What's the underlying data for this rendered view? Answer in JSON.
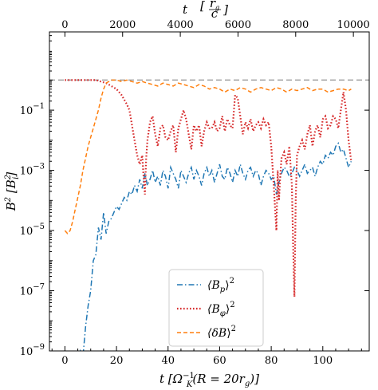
{
  "chart_data": {
    "type": "line",
    "xlabel_main": "t [Ω",
    "xlabel_main_sub": "K",
    "xlabel_main_sup": "−1",
    "xlabel_main_rest": "(R = 20r",
    "xlabel_main_rest_sub": "g",
    "xlabel_main_end": ")]",
    "xlabel_top": "t",
    "xlabel_top_frac_num": "r",
    "xlabel_top_frac_num_sub": "g",
    "xlabel_top_frac_den": "c",
    "ylabel": "B",
    "ylabel_sup": "2",
    "ylabel_unit": "[B",
    "ylabel_unit_sub": "i",
    "ylabel_unit_sup": "2",
    "ylabel_unit_end": "]",
    "xlim": [
      -6,
      118
    ],
    "ylim_log10": [
      -9,
      1.6
    ],
    "yscale": "log",
    "x_ticks": [
      0,
      20,
      40,
      60,
      80,
      100
    ],
    "x_tick_labels": [
      "0",
      "20",
      "40",
      "60",
      "80",
      "100"
    ],
    "y_ticks_log10": [
      -9,
      -7,
      -5,
      -3,
      -1
    ],
    "y_tick_base": "10",
    "y_tick_exponents": [
      "−9",
      "−7",
      "−5",
      "−3",
      "−1"
    ],
    "top_ticks": [
      0,
      2000,
      4000,
      6000,
      8000,
      10000
    ],
    "top_tick_labels": [
      "0",
      "2000",
      "4000",
      "6000",
      "8000",
      "10000"
    ],
    "top_axis_scale": 89.4,
    "reference_line_log10": 0,
    "legend_position": "bottom-center",
    "series": [
      {
        "name_base": "⟨B",
        "name_sub": "p",
        "name_end": "⟩",
        "name_sup": "2",
        "color": "#1f77b4",
        "dash": "dashdot",
        "x": [
          0,
          2,
          4,
          6,
          7,
          8,
          9,
          10,
          11,
          12,
          13,
          14,
          15,
          16,
          17,
          18,
          19,
          20,
          21,
          22,
          23,
          24,
          25,
          26,
          27,
          28,
          29,
          30,
          31,
          32,
          33,
          34,
          35,
          36,
          37,
          38,
          39,
          40,
          41,
          42,
          43,
          44,
          45,
          46,
          47,
          48,
          49,
          50,
          51,
          52,
          53,
          54,
          55,
          56,
          57,
          58,
          59,
          60,
          61,
          62,
          63,
          64,
          65,
          66,
          67,
          68,
          69,
          70,
          71,
          72,
          73,
          74,
          75,
          76,
          77,
          78,
          79,
          80,
          81,
          82,
          83,
          84,
          85,
          86,
          87,
          88,
          89,
          90,
          91,
          92,
          93,
          94,
          95,
          96,
          97,
          98,
          99,
          100,
          101,
          102,
          103,
          104,
          105,
          106,
          107,
          108,
          109,
          110,
          111
        ],
        "log10_y": [
          -10,
          -10,
          -9.8,
          -9.0,
          -9.2,
          -8.2,
          -7.5,
          -7.0,
          -6.0,
          -5.8,
          -4.9,
          -5.3,
          -4.4,
          -5.1,
          -4.7,
          -4.6,
          -4.4,
          -4.2,
          -4.3,
          -4.1,
          -3.9,
          -4.0,
          -3.7,
          -3.8,
          -3.5,
          -3.7,
          -3.3,
          -3.6,
          -3.1,
          -3.5,
          -3.3,
          -3.0,
          -3.4,
          -3.2,
          -3.5,
          -3.0,
          -3.2,
          -3.6,
          -2.9,
          -3.1,
          -3.3,
          -3.6,
          -3.0,
          -3.2,
          -3.4,
          -3.1,
          -2.9,
          -3.3,
          -3.0,
          -3.2,
          -3.5,
          -3.1,
          -2.9,
          -3.2,
          -3.0,
          -3.4,
          -3.1,
          -2.8,
          -3.2,
          -3.3,
          -2.9,
          -3.1,
          -3.4,
          -3.0,
          -3.2,
          -2.8,
          -3.1,
          -3.3,
          -3.0,
          -2.9,
          -3.2,
          -3.0,
          -3.1,
          -3.5,
          -3.2,
          -3.0,
          -3.1,
          -3.3,
          -3.2,
          -3.8,
          -3.4,
          -3.1,
          -2.9,
          -3.0,
          -3.2,
          -3.1,
          -2.9,
          -3.0,
          -3.2,
          -3.0,
          -2.8,
          -3.1,
          -3.0,
          -2.9,
          -3.2,
          -2.9,
          -2.7,
          -2.8,
          -2.5,
          -2.6,
          -2.4,
          -2.5,
          -2.2,
          -2.1,
          -2.4,
          -2.3,
          -2.6,
          -2.9,
          -2.7
        ]
      },
      {
        "name_base": "⟨B",
        "name_sub": "φ",
        "name_end": "⟩",
        "name_sup": "2",
        "color": "#d62728",
        "dash": "dotted",
        "x": [
          0,
          4,
          8,
          12,
          16,
          18,
          20,
          22,
          24,
          25,
          26,
          27,
          28,
          29,
          30,
          30.5,
          31,
          31.5,
          32,
          33,
          34,
          35,
          36,
          37,
          38,
          39,
          40,
          41,
          42,
          43,
          44,
          45,
          46,
          47,
          48,
          49,
          50,
          51,
          52,
          53,
          54,
          55,
          56,
          57,
          58,
          59,
          60,
          61,
          62,
          63,
          64,
          65,
          66,
          67,
          68,
          69,
          70,
          71,
          72,
          73,
          74,
          75,
          76,
          77,
          78,
          79,
          80,
          81,
          82,
          82.5,
          83,
          83.5,
          84,
          85,
          86,
          87,
          88,
          88.5,
          89,
          89.5,
          90,
          91,
          92,
          93,
          94,
          95,
          96,
          97,
          98,
          99,
          100,
          101,
          102,
          103,
          104,
          105,
          106,
          107,
          108,
          109,
          110,
          111
        ],
        "log10_y": [
          0,
          0,
          0,
          0,
          -0.1,
          -0.2,
          -0.3,
          -0.5,
          -0.8,
          -1.0,
          -1.5,
          -2.0,
          -2.5,
          -2.8,
          -2.5,
          -3.2,
          -3.8,
          -2.6,
          -2.0,
          -1.4,
          -1.2,
          -1.8,
          -2.2,
          -1.6,
          -1.5,
          -1.9,
          -2.0,
          -1.7,
          -1.5,
          -2.4,
          -1.6,
          -1.3,
          -1.0,
          -1.3,
          -1.8,
          -2.3,
          -1.5,
          -1.7,
          -1.5,
          -2.2,
          -1.7,
          -1.4,
          -1.6,
          -1.6,
          -1.4,
          -1.7,
          -1.6,
          -1.2,
          -1.7,
          -1.3,
          -1.5,
          -1.6,
          -0.5,
          -0.6,
          -1.2,
          -1.8,
          -1.4,
          -1.6,
          -1.3,
          -1.7,
          -1.5,
          -1.4,
          -1.6,
          -1.3,
          -1.5,
          -1.4,
          -2.2,
          -3.5,
          -5.0,
          -3.0,
          -4.0,
          -3.2,
          -2.6,
          -2.4,
          -2.8,
          -2.2,
          -3.5,
          -5.5,
          -7.2,
          -4.0,
          -2.5,
          -2.2,
          -2.0,
          -2.3,
          -1.8,
          -1.5,
          -2.2,
          -1.7,
          -1.5,
          -1.9,
          -1.3,
          -1.2,
          -1.6,
          -1.5,
          -1.2,
          -1.3,
          -1.6,
          -1.0,
          -0.4,
          -1.0,
          -2.0,
          -2.7
        ]
      },
      {
        "name_base": "⟨δB",
        "name_sub": "",
        "name_end": "⟩",
        "name_sup": "2",
        "color": "#ff7f0e",
        "dash": "dashed",
        "x": [
          0,
          1,
          2,
          3,
          4,
          5,
          6,
          7,
          8,
          9,
          10,
          11,
          12,
          13,
          14,
          15,
          16,
          18,
          20,
          22,
          24,
          26,
          28,
          30,
          32,
          34,
          36,
          38,
          40,
          42,
          44,
          46,
          48,
          50,
          52,
          54,
          56,
          58,
          60,
          62,
          64,
          66,
          68,
          70,
          72,
          74,
          76,
          78,
          80,
          82,
          84,
          86,
          88,
          90,
          92,
          94,
          96,
          98,
          100,
          102,
          104,
          106,
          108,
          110,
          111
        ],
        "log10_y": [
          -5.0,
          -5.1,
          -5.0,
          -4.7,
          -4.3,
          -3.9,
          -3.5,
          -3.0,
          -2.6,
          -2.2,
          -1.9,
          -1.6,
          -1.3,
          -1.0,
          -0.6,
          -0.3,
          -0.1,
          0.0,
          0.0,
          -0.05,
          0.0,
          -0.05,
          -0.1,
          -0.05,
          -0.1,
          -0.15,
          -0.2,
          -0.1,
          -0.15,
          -0.2,
          -0.1,
          -0.15,
          -0.2,
          -0.25,
          -0.15,
          -0.2,
          -0.3,
          -0.25,
          -0.3,
          -0.4,
          -0.3,
          -0.35,
          -0.25,
          -0.3,
          -0.4,
          -0.3,
          -0.25,
          -0.3,
          -0.35,
          -0.25,
          -0.3,
          -0.4,
          -0.3,
          -0.35,
          -0.3,
          -0.25,
          -0.35,
          -0.3,
          -0.3,
          -0.4,
          -0.35,
          -0.3,
          -0.3,
          -0.35,
          -0.3
        ]
      }
    ]
  }
}
